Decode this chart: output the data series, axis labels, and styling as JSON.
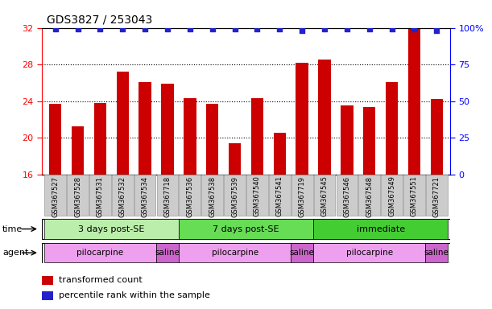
{
  "title": "GDS3827 / 253043",
  "samples": [
    "GSM367527",
    "GSM367528",
    "GSM367531",
    "GSM367532",
    "GSM367534",
    "GSM367718",
    "GSM367536",
    "GSM367538",
    "GSM367539",
    "GSM367540",
    "GSM367541",
    "GSM367719",
    "GSM367545",
    "GSM367546",
    "GSM367548",
    "GSM367549",
    "GSM367551",
    "GSM367721"
  ],
  "bar_values": [
    23.7,
    21.3,
    23.8,
    27.2,
    26.1,
    25.9,
    24.3,
    23.7,
    19.4,
    24.3,
    20.6,
    28.2,
    28.5,
    23.5,
    23.4,
    26.1,
    32.0,
    24.2
  ],
  "percentile_values": [
    99,
    99,
    99,
    99,
    99,
    99,
    99,
    99,
    99,
    99,
    99,
    98,
    99,
    99,
    99,
    99,
    99,
    98
  ],
  "bar_color": "#cc0000",
  "dot_color": "#2222cc",
  "ylim_left": [
    16,
    32
  ],
  "ylim_right": [
    0,
    100
  ],
  "yticks_left": [
    16,
    20,
    24,
    28,
    32
  ],
  "yticks_right": [
    0,
    25,
    50,
    75,
    100
  ],
  "grid_lines": [
    20,
    24,
    28
  ],
  "time_groups": [
    {
      "label": "3 days post-SE",
      "start": 0,
      "end": 6,
      "color": "#bbeeaa"
    },
    {
      "label": "7 days post-SE",
      "start": 6,
      "end": 12,
      "color": "#66dd55"
    },
    {
      "label": "immediate",
      "start": 12,
      "end": 18,
      "color": "#44cc33"
    }
  ],
  "agent_groups": [
    {
      "label": "pilocarpine",
      "start": 0,
      "end": 5,
      "color": "#eea0ee"
    },
    {
      "label": "saline",
      "start": 5,
      "end": 6,
      "color": "#cc66cc"
    },
    {
      "label": "pilocarpine",
      "start": 6,
      "end": 11,
      "color": "#eea0ee"
    },
    {
      "label": "saline",
      "start": 11,
      "end": 12,
      "color": "#cc66cc"
    },
    {
      "label": "pilocarpine",
      "start": 12,
      "end": 17,
      "color": "#eea0ee"
    },
    {
      "label": "saline",
      "start": 17,
      "end": 18,
      "color": "#cc66cc"
    }
  ],
  "legend_bar_color": "#cc0000",
  "legend_dot_color": "#2222cc",
  "legend_bar_label": "transformed count",
  "legend_dot_label": "percentile rank within the sample",
  "sample_box_color": "#cccccc",
  "sample_box_edge": "#999999",
  "background_color": "#ffffff",
  "bar_width": 0.55
}
